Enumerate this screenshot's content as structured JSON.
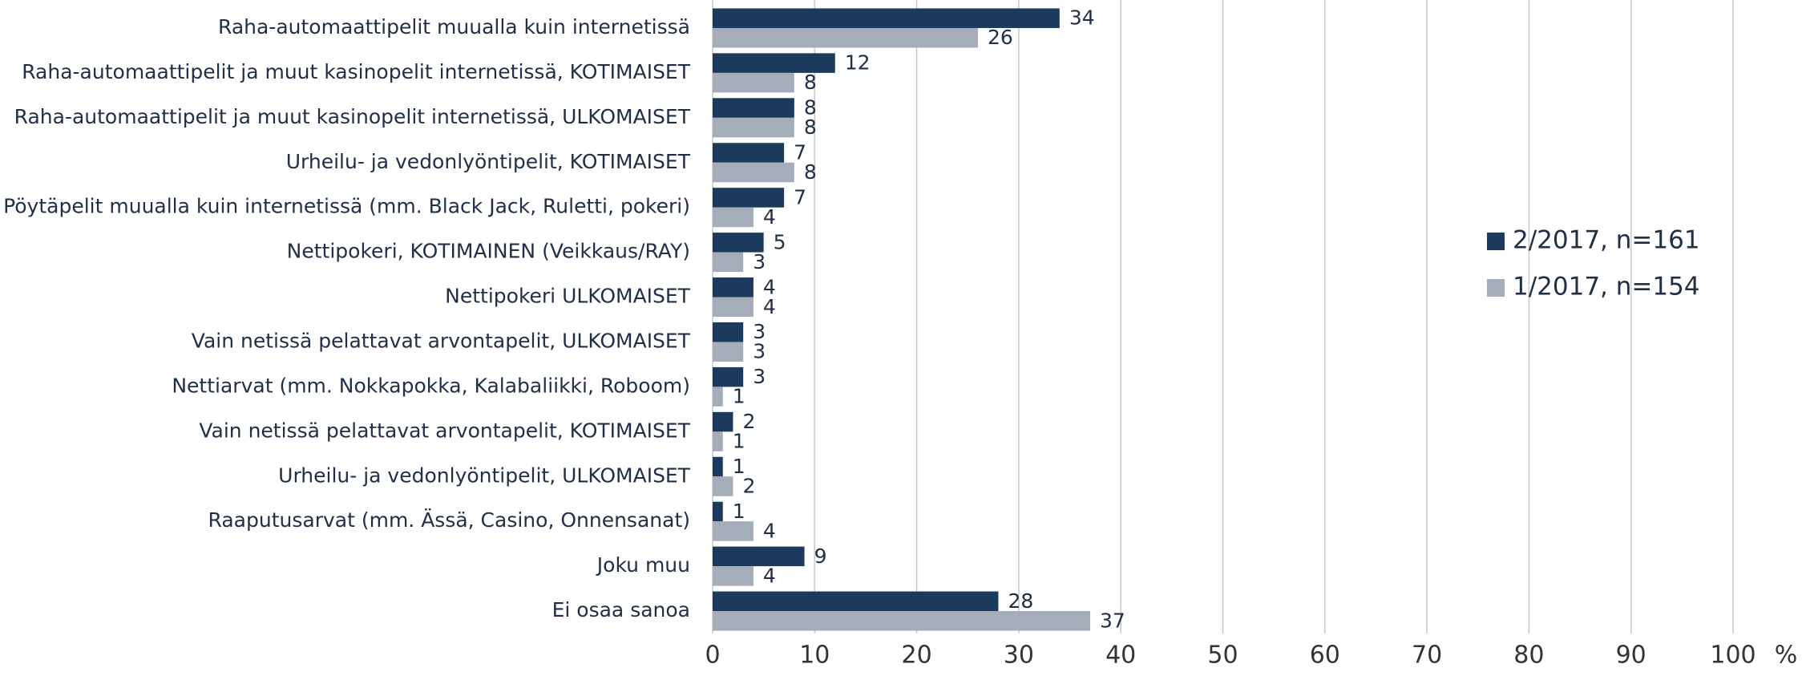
{
  "chart_data": {
    "type": "bar",
    "orientation": "horizontal",
    "categories": [
      "Raha-automaattipelit muualla kuin internetissä",
      "Raha-automaattipelit ja muut kasinopelit internetissä, KOTIMAISET",
      "Raha-automaattipelit ja muut kasinopelit internetissä, ULKOMAISET",
      "Urheilu- ja vedonlyöntipelit, KOTIMAISET",
      "Pöytäpelit muualla kuin internetissä (mm. Black Jack, Ruletti, pokeri)",
      "Nettipokeri, KOTIMAINEN (Veikkaus/RAY)",
      "Nettipokeri ULKOMAISET",
      "Vain netissä pelattavat arvontapelit, ULKOMAISET",
      "Nettiarvat (mm. Nokkapokka, Kalabaliikki, Roboom)",
      "Vain netissä pelattavat arvontapelit, KOTIMAISET",
      "Urheilu- ja vedonlyöntipelit, ULKOMAISET",
      "Raaputusarvat (mm. Ässä, Casino, Onnensanat)",
      "Joku muu",
      "Ei osaa sanoa"
    ],
    "series": [
      {
        "name": "2/2017, n=161",
        "color": "#1b3a5c",
        "values": [
          34,
          12,
          8,
          7,
          7,
          5,
          4,
          3,
          3,
          2,
          1,
          1,
          9,
          28
        ]
      },
      {
        "name": "1/2017, n=154",
        "color": "#a4adb9",
        "values": [
          26,
          8,
          8,
          8,
          4,
          3,
          4,
          3,
          1,
          1,
          2,
          4,
          4,
          37
        ]
      }
    ],
    "xlim": [
      0,
      100
    ],
    "xticks": [
      0,
      10,
      20,
      30,
      40,
      50,
      60,
      70,
      80,
      90,
      100
    ],
    "x_label": "%",
    "grid": true,
    "legend": "right"
  }
}
